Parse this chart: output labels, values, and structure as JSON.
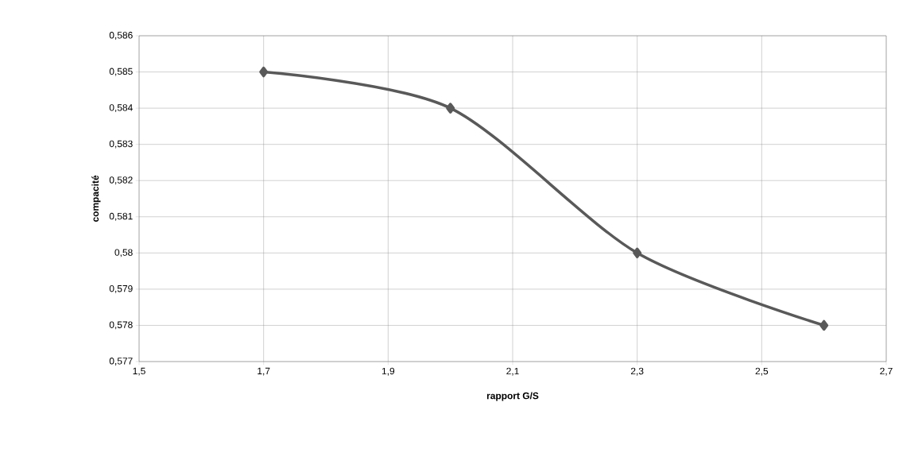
{
  "chart_data": {
    "type": "line",
    "xlabel": "rapport G/S",
    "ylabel": "compacité",
    "x": [
      1.7,
      2.0,
      2.3,
      2.6
    ],
    "series": [
      {
        "color": "#595959",
        "values": [
          0.585,
          0.584,
          0.58,
          0.578
        ]
      }
    ],
    "xlim": [
      1.5,
      2.7
    ],
    "xticks": [
      {
        "value": 1.5,
        "label": "1,5"
      },
      {
        "value": 1.7,
        "label": "1,7"
      },
      {
        "value": 1.9,
        "label": "1,9"
      },
      {
        "value": 2.1,
        "label": "2,1"
      },
      {
        "value": 2.3,
        "label": "2,3"
      },
      {
        "value": 2.5,
        "label": "2,5"
      },
      {
        "value": 2.7,
        "label": "2,7"
      }
    ],
    "ylim": [
      0.577,
      0.586
    ],
    "yticks": [
      {
        "value": 0.577,
        "label": "0,577"
      },
      {
        "value": 0.578,
        "label": "0,578"
      },
      {
        "value": 0.579,
        "label": "0,579"
      },
      {
        "value": 0.58,
        "label": "0,58"
      },
      {
        "value": 0.581,
        "label": "0,581"
      },
      {
        "value": 0.582,
        "label": "0,582"
      },
      {
        "value": 0.583,
        "label": "0,583"
      },
      {
        "value": 0.584,
        "label": "0,584"
      },
      {
        "value": 0.585,
        "label": "0,585"
      },
      {
        "value": 0.586,
        "label": "0,586"
      }
    ],
    "grid": true,
    "marker": "diamond",
    "line_style": "solid"
  }
}
